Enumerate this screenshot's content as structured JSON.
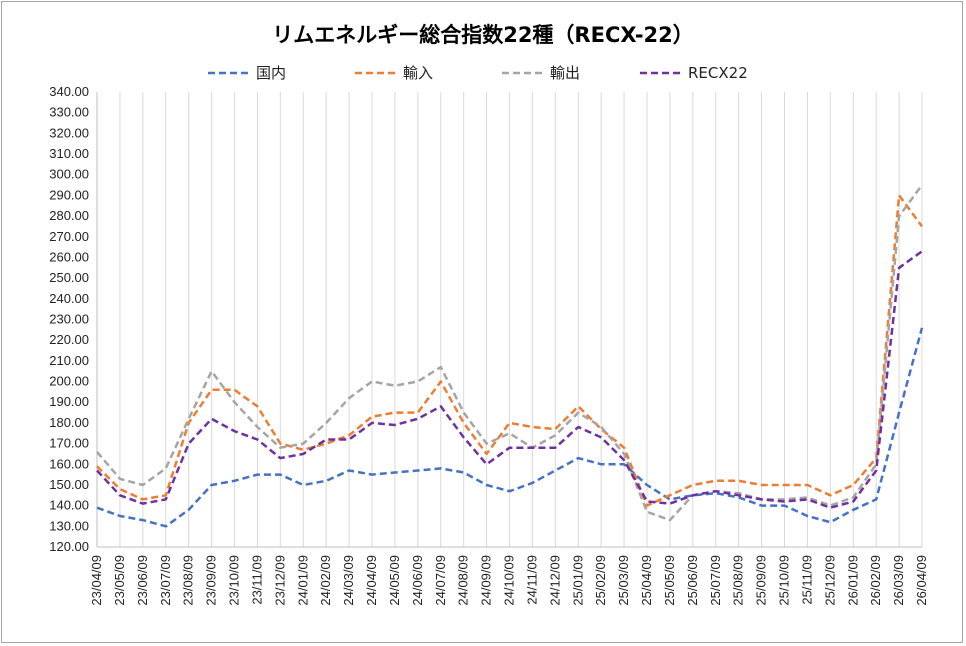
{
  "chart_data": {
    "type": "line",
    "title": "リムエネルギー総合指数22種（RECX-22）",
    "xlabel": "",
    "ylabel": "",
    "ylim": [
      120,
      340
    ],
    "ytick_step": 10,
    "grid": "vertical",
    "legend_position": "top",
    "x": [
      "23/04/09",
      "23/05/09",
      "23/06/09",
      "23/07/09",
      "23/08/09",
      "23/09/09",
      "23/10/09",
      "23/11/09",
      "23/12/09",
      "24/01/09",
      "24/02/09",
      "24/03/09",
      "24/04/09",
      "24/05/09",
      "24/06/09",
      "24/07/09",
      "24/08/09",
      "24/09/09",
      "24/10/09",
      "24/11/09",
      "24/12/09",
      "25/01/09",
      "25/02/09",
      "25/03/09",
      "25/04/09",
      "25/05/09",
      "25/06/09",
      "25/07/09",
      "25/08/09",
      "25/09/09",
      "25/10/09",
      "25/11/09",
      "25/12/09",
      "26/01/09",
      "26/02/09",
      "26/03/09",
      "26/04/09"
    ],
    "series": [
      {
        "name": "国内",
        "color": "#4472c4",
        "values": [
          139,
          135,
          133,
          130,
          138,
          150,
          152,
          155,
          155,
          150,
          152,
          157,
          155,
          156,
          157,
          158,
          156,
          150,
          147,
          151,
          157,
          163,
          160,
          160,
          150,
          143,
          145,
          146,
          144,
          140,
          140,
          135,
          132,
          138,
          143,
          185,
          226
        ]
      },
      {
        "name": "輸入",
        "color": "#ed7d31",
        "values": [
          159,
          148,
          143,
          145,
          180,
          196,
          196,
          188,
          170,
          167,
          170,
          174,
          183,
          185,
          185,
          200,
          180,
          165,
          180,
          178,
          177,
          188,
          177,
          168,
          140,
          145,
          150,
          152,
          152,
          150,
          150,
          150,
          145,
          150,
          163,
          290,
          275
        ]
      },
      {
        "name": "輸出",
        "color": "#a5a5a5",
        "values": [
          166,
          153,
          150,
          158,
          182,
          205,
          190,
          178,
          168,
          170,
          180,
          192,
          200,
          198,
          200,
          207,
          185,
          170,
          175,
          168,
          174,
          185,
          178,
          165,
          137,
          133,
          145,
          147,
          146,
          143,
          143,
          144,
          140,
          144,
          160,
          280,
          295
        ]
      },
      {
        "name": "RECX22",
        "color": "#7030a0",
        "values": [
          157,
          145,
          141,
          143,
          170,
          182,
          176,
          172,
          163,
          165,
          172,
          172,
          180,
          179,
          182,
          188,
          173,
          160,
          168,
          168,
          168,
          178,
          173,
          162,
          142,
          141,
          145,
          147,
          145,
          143,
          142,
          143,
          139,
          142,
          157,
          255,
          263
        ]
      }
    ]
  }
}
